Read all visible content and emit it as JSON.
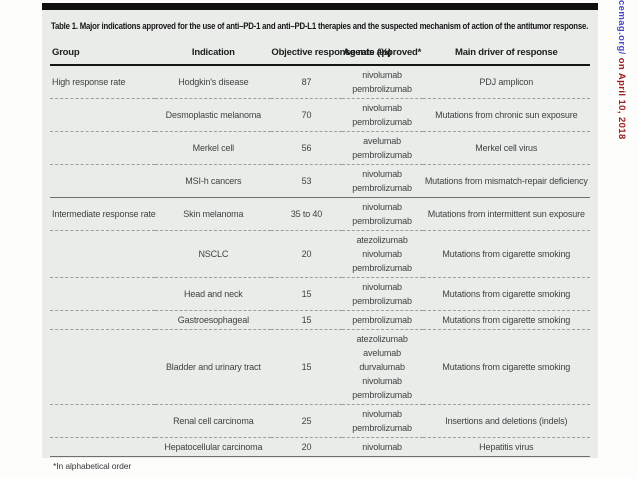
{
  "margin_note": {
    "link_text": "cemag.org/",
    "date_text": " on April 10, 2018",
    "link_color": "#4a44c2",
    "date_color": "#9b1b1e"
  },
  "table": {
    "title": "Table 1. Major indications approved for the use of anti–PD-1 and anti–PD-L1 therapies and the suspected mechanism of action of the antitumor response.",
    "columns": [
      "Group",
      "Indication",
      "Objective response rate (%)",
      "Agents approved*",
      "Main driver of response"
    ],
    "rows": [
      {
        "group": "High response rate",
        "section_start": true,
        "indication": "Hodgkin's disease",
        "orr": "87",
        "agents": [
          "nivolumab",
          "pembrolizumab"
        ],
        "driver": "PDJ amplicon"
      },
      {
        "group": "",
        "section_start": false,
        "indication": "Desmoplastic melanoma",
        "orr": "70",
        "agents": [
          "nivolumab",
          "pembrolizumab"
        ],
        "driver": "Mutations from chronic sun exposure"
      },
      {
        "group": "",
        "section_start": false,
        "indication": "Merkel cell",
        "orr": "56",
        "agents": [
          "avelumab",
          "pembrolizumab"
        ],
        "driver": "Merkel cell virus"
      },
      {
        "group": "",
        "section_start": false,
        "indication": "MSI-h cancers",
        "orr": "53",
        "agents": [
          "nivolumab",
          "pembrolizumab"
        ],
        "driver": "Mutations from mismatch-repair deficiency"
      },
      {
        "group": "Intermediate response rate",
        "section_start": true,
        "indication": "Skin melanoma",
        "orr": "35 to 40",
        "agents": [
          "nivolumab",
          "pembrolizumab"
        ],
        "driver": "Mutations from intermittent sun exposure"
      },
      {
        "group": "",
        "section_start": false,
        "indication": "NSCLC",
        "orr": "20",
        "agents": [
          "atezolizumab",
          "nivolumab",
          "pembrolizumab"
        ],
        "driver": "Mutations from cigarette smoking"
      },
      {
        "group": "",
        "section_start": false,
        "indication": "Head and neck",
        "orr": "15",
        "agents": [
          "nivolumab",
          "pembrolizumab"
        ],
        "driver": "Mutations from cigarette smoking"
      },
      {
        "group": "",
        "section_start": false,
        "indication": "Gastroesophageal",
        "orr": "15",
        "agents": [
          "pembrolizumab"
        ],
        "driver": "Mutations from cigarette smoking"
      },
      {
        "group": "",
        "section_start": false,
        "indication": "Bladder and urinary tract",
        "orr": "15",
        "agents": [
          "atezolizumab",
          "avelumab",
          "durvalumab",
          "nivolumab",
          "pembrolizumab"
        ],
        "driver": "Mutations from cigarette smoking"
      },
      {
        "group": "",
        "section_start": false,
        "indication": "Renal cell carcinoma",
        "orr": "25",
        "agents": [
          "nivolumab",
          "pembrolizumab"
        ],
        "driver": "Insertions and deletions (indels)"
      },
      {
        "group": "",
        "section_start": false,
        "indication": "Hepatocellular carcinoma",
        "orr": "20",
        "agents": [
          "nivolumab"
        ],
        "driver": "Hepatitis virus"
      }
    ],
    "footnote": "*In alphabetical order"
  }
}
